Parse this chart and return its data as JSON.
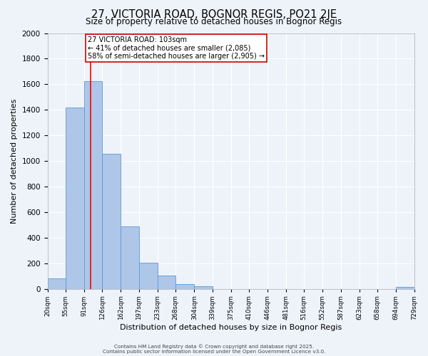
{
  "title": "27, VICTORIA ROAD, BOGNOR REGIS, PO21 2JE",
  "subtitle": "Size of property relative to detached houses in Bognor Regis",
  "xlabel": "Distribution of detached houses by size in Bognor Regis",
  "ylabel": "Number of detached properties",
  "bar_color": "#aec6e8",
  "bar_edge_color": "#5b9bd5",
  "bg_color": "#eef3fa",
  "grid_color": "#ffffff",
  "bins": [
    20,
    55,
    91,
    126,
    162,
    197,
    233,
    268,
    304,
    339,
    375,
    410,
    446,
    481,
    516,
    552,
    587,
    623,
    658,
    694,
    729
  ],
  "bar_heights": [
    80,
    1420,
    1625,
    1055,
    490,
    205,
    105,
    35,
    20,
    0,
    0,
    0,
    0,
    0,
    0,
    0,
    0,
    0,
    0,
    15
  ],
  "red_line_x": 103,
  "annotation_text": "27 VICTORIA ROAD: 103sqm\n← 41% of detached houses are smaller (2,085)\n58% of semi-detached houses are larger (2,905) →",
  "annotation_box_color": "#ffffff",
  "annotation_box_edge": "#cc0000",
  "ylim": [
    0,
    2000
  ],
  "yticks": [
    0,
    200,
    400,
    600,
    800,
    1000,
    1200,
    1400,
    1600,
    1800,
    2000
  ],
  "tick_labels": [
    "20sqm",
    "55sqm",
    "91sqm",
    "126sqm",
    "162sqm",
    "197sqm",
    "233sqm",
    "268sqm",
    "304sqm",
    "339sqm",
    "375sqm",
    "410sqm",
    "446sqm",
    "481sqm",
    "516sqm",
    "552sqm",
    "587sqm",
    "623sqm",
    "658sqm",
    "694sqm",
    "729sqm"
  ],
  "footer1": "Contains HM Land Registry data © Crown copyright and database right 2025.",
  "footer2": "Contains public sector information licensed under the Open Government Licence v3.0."
}
